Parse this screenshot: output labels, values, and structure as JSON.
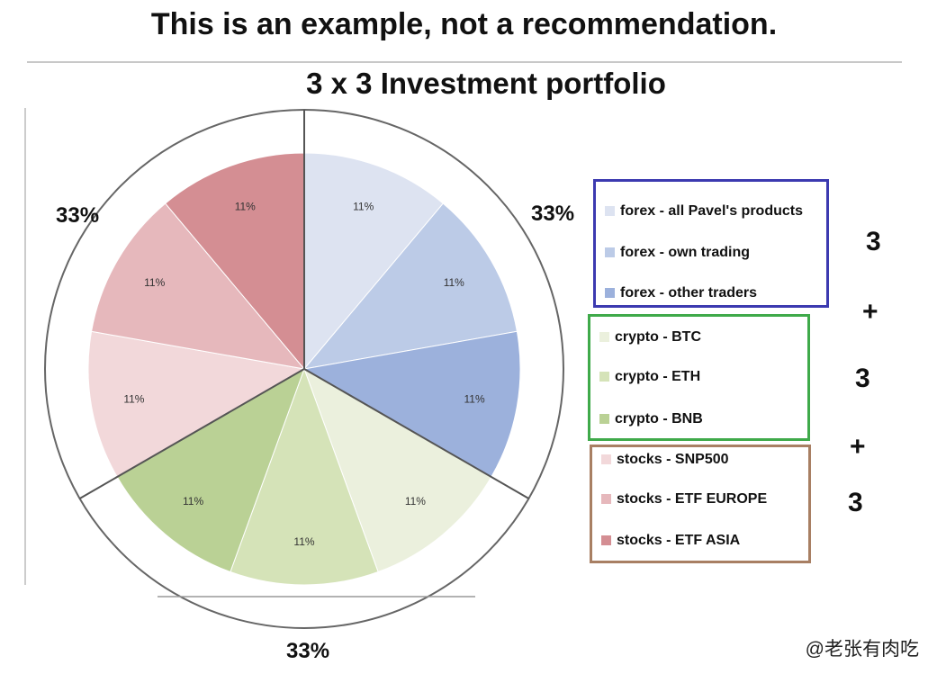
{
  "page": {
    "headline": "This is an example, not a recommendation.",
    "watermark": "@老张有肉吃",
    "totals": {
      "first": "3",
      "plus1": "+",
      "second": "3",
      "plus2": "+",
      "third": "3"
    },
    "group_labels": {
      "forex": "33%",
      "stocks": "33%",
      "crypto": "33%"
    }
  },
  "chart_data": {
    "type": "pie",
    "title": "3 x 3 Investment portfolio",
    "legend_position": "right",
    "slices": [
      {
        "label": "forex - all Pavel's products",
        "value": 11,
        "display": "11%",
        "color": "#dde3f1"
      },
      {
        "label": "forex - own trading",
        "value": 11,
        "display": "11%",
        "color": "#bccbe7"
      },
      {
        "label": "forex - other traders",
        "value": 11,
        "display": "11%",
        "color": "#9cb1dc"
      },
      {
        "label": "crypto - BTC",
        "value": 11,
        "display": "11%",
        "color": "#ebf0dd"
      },
      {
        "label": "crypto - ETH",
        "value": 11,
        "display": "11%",
        "color": "#d5e3b8"
      },
      {
        "label": "crypto - BNB",
        "value": 11,
        "display": "11%",
        "color": "#bad195"
      },
      {
        "label": "stocks - SNP500",
        "value": 11,
        "display": "11%",
        "color": "#f2d8da"
      },
      {
        "label": "stocks - ETF EUROPE",
        "value": 11,
        "display": "11%",
        "color": "#e6b8bc"
      },
      {
        "label": "stocks  - ETF ASIA",
        "value": 11,
        "display": "11%",
        "color": "#d48e93"
      }
    ],
    "legend_groups": [
      {
        "name": "forex",
        "border_color": "#3c3ab0"
      },
      {
        "name": "crypto",
        "border_color": "#3faa4a"
      },
      {
        "name": "stocks",
        "border_color": "#a87f63"
      }
    ]
  }
}
